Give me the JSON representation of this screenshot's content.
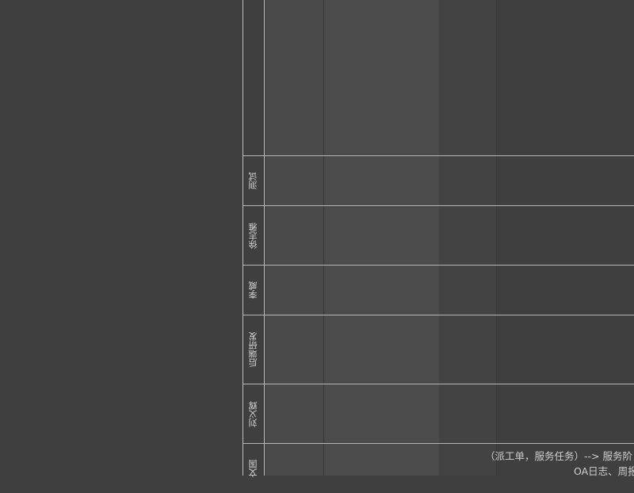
{
  "diagram": {
    "lanes": [
      {
        "label": "测试"
      },
      {
        "label": "徐志雅"
      },
      {
        "label": "李威"
      },
      {
        "label": "后端研发"
      },
      {
        "label": "刘义辉"
      },
      {
        "label": "文国"
      }
    ],
    "notes": [
      "（派工单，服务任务）--> 服务阶",
      "OA日志、周报"
    ]
  }
}
